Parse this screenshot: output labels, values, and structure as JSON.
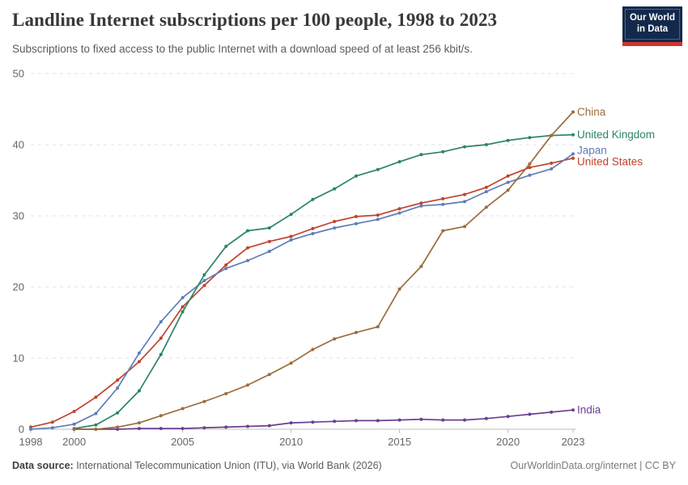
{
  "header": {
    "title": "Landline Internet subscriptions per 100 people, 1998 to 2023",
    "subtitle": "Subscriptions to fixed access to the public Internet with a download speed of at least 256 kbit/s.",
    "logo": {
      "line1": "Our World",
      "line2": "in Data",
      "bg_color": "#13294c",
      "bar_color": "#d1342c"
    }
  },
  "footer": {
    "datasource_label": "Data source:",
    "datasource_text": " International Telecommunication Union (ITU), via World Bank (2026)",
    "rights": "OurWorldinData.org/internet | CC BY"
  },
  "chart_data": {
    "type": "line",
    "title": "Landline Internet subscriptions per 100 people, 1998 to 2023",
    "subtitle": "Subscriptions to fixed access to the public Internet with a download speed of at least 256 kbit/s.",
    "xlabel": "",
    "ylabel": "",
    "xlim": [
      1998,
      2023
    ],
    "ylim": [
      0,
      50
    ],
    "xticks": [
      1998,
      2000,
      2005,
      2010,
      2015,
      2020,
      2023
    ],
    "yticks": [
      0,
      10,
      20,
      30,
      40,
      50
    ],
    "grid": "horizontal-dashed",
    "legend_position": "end-of-line-labels",
    "colors": {
      "grid": "#e2e2e2",
      "axis": "#bcbcbc",
      "tick_label": "#666666"
    },
    "series": [
      {
        "name": "China",
        "color": "#9c6c3c",
        "start_year": 2000,
        "values": [
          0.0,
          0.0,
          0.3,
          0.9,
          1.9,
          2.9,
          3.9,
          5.0,
          6.2,
          7.7,
          9.3,
          11.2,
          12.7,
          13.6,
          14.4,
          19.7,
          22.9,
          27.9,
          28.5,
          31.2,
          33.6,
          37.3,
          41.3,
          44.6
        ]
      },
      {
        "name": "United Kingdom",
        "color": "#2c8465",
        "start_year": 2000,
        "values": [
          0.1,
          0.6,
          2.3,
          5.4,
          10.5,
          16.5,
          21.7,
          25.7,
          27.9,
          28.3,
          30.2,
          32.3,
          33.8,
          35.6,
          36.5,
          37.6,
          38.6,
          39.0,
          39.7,
          40.0,
          40.6,
          41.0,
          41.3,
          41.4
        ]
      },
      {
        "name": "Japan",
        "color": "#5e7db8",
        "start_year": 1998,
        "values": [
          0.0,
          0.2,
          0.7,
          2.2,
          5.8,
          10.7,
          15.1,
          18.5,
          20.9,
          22.6,
          23.7,
          25.0,
          26.6,
          27.5,
          28.3,
          28.9,
          29.5,
          30.4,
          31.4,
          31.6,
          32.0,
          33.4,
          34.7,
          35.7,
          36.6,
          38.7
        ]
      },
      {
        "name": "United States",
        "color": "#c0432b",
        "start_year": 1998,
        "values": [
          0.3,
          1.0,
          2.5,
          4.5,
          6.9,
          9.5,
          12.8,
          17.2,
          20.2,
          23.1,
          25.5,
          26.4,
          27.1,
          28.2,
          29.2,
          29.9,
          30.1,
          31.0,
          31.8,
          32.4,
          33.0,
          34.0,
          35.6,
          36.8,
          37.4,
          38.1
        ]
      },
      {
        "name": "India",
        "color": "#6d3e91",
        "start_year": 2000,
        "values": [
          0.0,
          0.0,
          0.0,
          0.1,
          0.1,
          0.1,
          0.2,
          0.3,
          0.4,
          0.5,
          0.9,
          1.0,
          1.1,
          1.2,
          1.2,
          1.3,
          1.4,
          1.3,
          1.3,
          1.5,
          1.8,
          2.1,
          2.4,
          2.7
        ]
      }
    ]
  }
}
